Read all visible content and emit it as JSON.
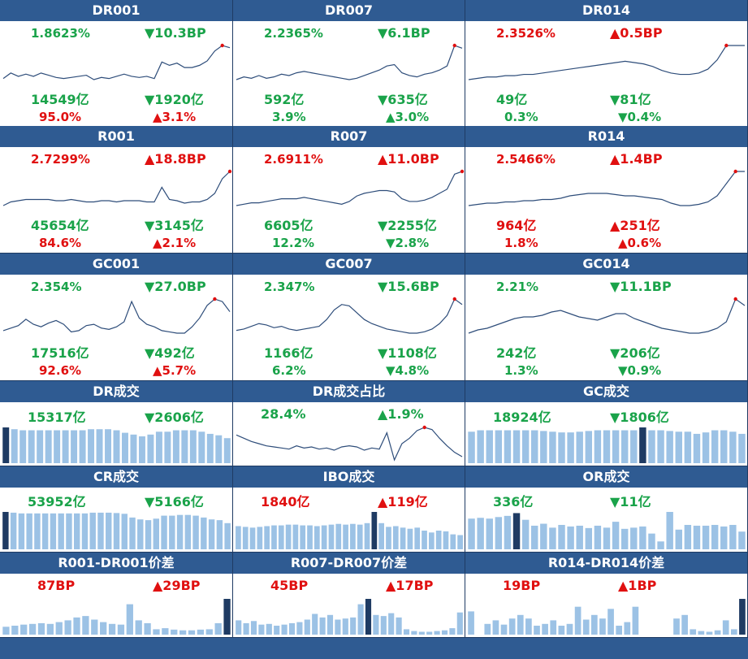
{
  "colors": {
    "header": "#2f5b92",
    "up": "#e01010",
    "down": "#1aa34a",
    "line": "#2e4d7a",
    "bar": "#9cc2e5",
    "bar_hi": "#1f3b63"
  },
  "rate_cells": [
    {
      "title": "DR001",
      "rate": "1.8623%",
      "rate_color": "g",
      "chg": "▼10.3BP",
      "chg_color": "g",
      "vol": "14549亿",
      "vol_color": "g",
      "vchg": "▼1920亿",
      "vchg_color": "g",
      "pct": "95.0%",
      "pct_color": "r",
      "pchg": "▲3.1%",
      "pchg_color": "r",
      "series": [
        40,
        45,
        42,
        44,
        42,
        45,
        43,
        41,
        40,
        41,
        42,
        43,
        39,
        41,
        40,
        42,
        44,
        42,
        41,
        42,
        40,
        55,
        52,
        54,
        50,
        50,
        52,
        56,
        65,
        70,
        68
      ]
    },
    {
      "title": "DR007",
      "rate": "2.2365%",
      "rate_color": "g",
      "chg": "▼6.1BP",
      "chg_color": "g",
      "vol": "592亿",
      "vol_color": "g",
      "vchg": "▼635亿",
      "vchg_color": "g",
      "pct": "3.9%",
      "pchg": "▲3.0%",
      "pct_color": "g",
      "pchg_color": "g",
      "series": [
        45,
        47,
        46,
        48,
        46,
        47,
        49,
        48,
        50,
        51,
        50,
        49,
        48,
        47,
        46,
        45,
        46,
        48,
        50,
        52,
        55,
        56,
        50,
        48,
        47,
        49,
        50,
        52,
        55,
        70,
        68
      ]
    },
    {
      "title": "DR014",
      "rate": "2.3526%",
      "rate_color": "r",
      "chg": "▲0.5BP",
      "chg_color": "r",
      "vol": "49亿",
      "vol_color": "g",
      "vchg": "▼81亿",
      "vchg_color": "g",
      "pct": "0.3%",
      "pct_color": "g",
      "pchg": "▼0.4%",
      "pchg_color": "g",
      "series": [
        40,
        41,
        42,
        42,
        43,
        43,
        44,
        44,
        45,
        46,
        47,
        48,
        49,
        50,
        51,
        52,
        53,
        54,
        53,
        52,
        50,
        47,
        45,
        44,
        44,
        45,
        48,
        55,
        66,
        66,
        66
      ]
    },
    {
      "title": "R001",
      "rate": "2.7299%",
      "rate_color": "r",
      "chg": "▲18.8BP",
      "chg_color": "r",
      "vol": "45654亿",
      "vol_color": "g",
      "vchg": "▼3145亿",
      "vchg_color": "g",
      "pct": "84.6%",
      "pct_color": "r",
      "pchg": "▲2.1%",
      "pchg_color": "r",
      "series": [
        40,
        43,
        44,
        45,
        45,
        45,
        45,
        44,
        44,
        45,
        44,
        43,
        43,
        44,
        44,
        43,
        44,
        44,
        44,
        43,
        43,
        55,
        45,
        44,
        42,
        43,
        43,
        45,
        50,
        62,
        68
      ]
    },
    {
      "title": "R007",
      "rate": "2.6911%",
      "rate_color": "r",
      "chg": "▲11.0BP",
      "chg_color": "r",
      "vol": "6605亿",
      "vol_color": "g",
      "vchg": "▼2255亿",
      "vchg_color": "g",
      "pct": "12.2%",
      "pct_color": "g",
      "pchg": "▼2.8%",
      "pchg_color": "g",
      "series": [
        45,
        46,
        47,
        47,
        48,
        49,
        50,
        50,
        50,
        51,
        50,
        49,
        48,
        47,
        46,
        48,
        52,
        54,
        55,
        56,
        56,
        55,
        50,
        48,
        48,
        49,
        51,
        54,
        57,
        68,
        70
      ]
    },
    {
      "title": "R014",
      "rate": "2.5466%",
      "rate_color": "r",
      "chg": "▲1.4BP",
      "chg_color": "r",
      "vol": "964亿",
      "vol_color": "r",
      "vchg": "▲251亿",
      "vchg_color": "r",
      "pct": "1.8%",
      "pct_color": "r",
      "pchg": "▲0.6%",
      "pchg_color": "r",
      "series": [
        42,
        43,
        44,
        44,
        45,
        45,
        46,
        46,
        47,
        47,
        48,
        50,
        51,
        52,
        52,
        52,
        51,
        50,
        50,
        49,
        48,
        47,
        44,
        42,
        42,
        43,
        45,
        50,
        60,
        70,
        70
      ]
    },
    {
      "title": "GC001",
      "rate": "2.354%",
      "rate_color": "g",
      "chg": "▼27.0BP",
      "chg_color": "g",
      "vol": "17516亿",
      "vol_color": "g",
      "vchg": "▼492亿",
      "vchg_color": "g",
      "pct": "92.6%",
      "pct_color": "r",
      "pchg": "▲5.7%",
      "pchg_color": "r",
      "series": [
        45,
        47,
        49,
        54,
        50,
        48,
        51,
        53,
        50,
        44,
        45,
        49,
        50,
        47,
        46,
        48,
        52,
        68,
        55,
        50,
        48,
        45,
        44,
        43,
        43,
        48,
        55,
        65,
        70,
        68,
        60
      ]
    },
    {
      "title": "GC007",
      "rate": "2.347%",
      "rate_color": "g",
      "chg": "▼15.6BP",
      "chg_color": "g",
      "vol": "1166亿",
      "vol_color": "g",
      "vchg": "▼1108亿",
      "vchg_color": "g",
      "pct": "6.2%",
      "pct_color": "g",
      "pchg": "▼4.8%",
      "pchg_color": "g",
      "series": [
        47,
        48,
        50,
        52,
        51,
        49,
        50,
        48,
        47,
        48,
        49,
        50,
        55,
        62,
        66,
        65,
        60,
        55,
        52,
        50,
        48,
        47,
        46,
        45,
        45,
        46,
        48,
        52,
        58,
        70,
        66
      ]
    },
    {
      "title": "GC014",
      "rate": "2.21%",
      "rate_color": "g",
      "chg": "▼11.1BP",
      "chg_color": "g",
      "vol": "242亿",
      "vol_color": "g",
      "vchg": "▼206亿",
      "vchg_color": "g",
      "pct": "1.3%",
      "pct_color": "g",
      "pchg": "▼0.9%",
      "pchg_color": "g",
      "series": [
        45,
        47,
        48,
        50,
        52,
        54,
        55,
        55,
        56,
        58,
        59,
        57,
        55,
        54,
        53,
        55,
        57,
        57,
        54,
        52,
        50,
        48,
        47,
        46,
        45,
        45,
        46,
        48,
        52,
        66,
        62
      ]
    }
  ],
  "row4": [
    {
      "title": "DR成交",
      "kind": "bar",
      "v1": "15317亿",
      "v1_color": "g",
      "v2": "▼2606亿",
      "v2_color": "g",
      "series": [
        100,
        95,
        92,
        92,
        92,
        92,
        92,
        92,
        92,
        92,
        95,
        95,
        95,
        92,
        85,
        80,
        75,
        80,
        88,
        88,
        92,
        92,
        92,
        88,
        82,
        78,
        70
      ],
      "hi": 0
    },
    {
      "title": "DR成交占比",
      "kind": "line",
      "v1": "28.4%",
      "v1_color": "g",
      "v2": "▲1.9%",
      "v2_color": "g",
      "series": [
        38,
        35,
        32,
        30,
        28,
        27,
        26,
        25,
        28,
        26,
        27,
        25,
        26,
        24,
        27,
        28,
        27,
        24,
        26,
        25,
        40,
        15,
        30,
        35,
        42,
        45,
        43,
        35,
        28,
        22,
        18
      ]
    },
    {
      "title": "GC成交",
      "kind": "bar",
      "v1": "18924亿",
      "v1_color": "g",
      "v2": "▼1806亿",
      "v2_color": "g",
      "series": [
        88,
        92,
        92,
        92,
        92,
        92,
        92,
        92,
        90,
        88,
        86,
        86,
        88,
        90,
        92,
        92,
        92,
        92,
        92,
        100,
        92,
        92,
        90,
        88,
        88,
        82,
        86,
        92,
        92,
        88,
        82
      ],
      "hi": 19
    }
  ],
  "row5": [
    {
      "title": "CR成交",
      "v1": "53952亿",
      "v1_color": "g",
      "v2": "▼5166亿",
      "v2_color": "g",
      "series": [
        100,
        98,
        96,
        96,
        96,
        96,
        96,
        96,
        96,
        96,
        96,
        98,
        98,
        98,
        97,
        95,
        85,
        80,
        78,
        82,
        90,
        90,
        92,
        92,
        90,
        85,
        80,
        78,
        70
      ],
      "hi": 0
    },
    {
      "title": "IBO成交",
      "v1": "1840亿",
      "v1_color": "r",
      "v2": "▲119亿",
      "v2_color": "r",
      "series": [
        62,
        60,
        58,
        60,
        62,
        64,
        64,
        66,
        66,
        64,
        64,
        62,
        64,
        66,
        68,
        66,
        68,
        66,
        70,
        100,
        70,
        60,
        62,
        58,
        55,
        58,
        50,
        45,
        50,
        48,
        40,
        38
      ],
      "hi": 19
    },
    {
      "title": "OR成交",
      "v1": "336亿",
      "v1_color": "g",
      "v2": "▼11亿",
      "v2_color": "g",
      "series": [
        78,
        80,
        78,
        82,
        85,
        92,
        75,
        60,
        65,
        55,
        62,
        58,
        60,
        54,
        60,
        55,
        70,
        52,
        55,
        58,
        40,
        20,
        95,
        50,
        62,
        60,
        60,
        62,
        58,
        62,
        45
      ],
      "hi": 5
    }
  ],
  "row6": [
    {
      "title": "R001-DR001价差",
      "v1": "87BP",
      "v1_color": "r",
      "v2": "▲29BP",
      "v2_color": "r",
      "series": [
        22,
        25,
        28,
        30,
        32,
        30,
        35,
        40,
        48,
        52,
        42,
        35,
        30,
        28,
        85,
        40,
        32,
        15,
        18,
        14,
        12,
        12,
        14,
        15,
        32,
        100
      ],
      "hi": 25
    },
    {
      "title": "R007-DR007价差",
      "v1": "45BP",
      "v1_color": "r",
      "v2": "▲17BP",
      "v2_color": "r",
      "series": [
        40,
        32,
        38,
        28,
        30,
        25,
        28,
        32,
        35,
        42,
        58,
        48,
        55,
        42,
        45,
        48,
        85,
        100,
        55,
        52,
        60,
        48,
        15,
        10,
        8,
        8,
        10,
        12,
        18,
        62
      ],
      "hi": 17
    },
    {
      "title": "R014-DR014价差",
      "v1": "19BP",
      "v1_color": "r",
      "v2": "▲1BP",
      "v2_color": "r",
      "series": [
        65,
        0,
        30,
        40,
        28,
        45,
        55,
        45,
        25,
        30,
        40,
        25,
        30,
        78,
        42,
        55,
        45,
        72,
        25,
        35,
        78,
        0,
        0,
        0,
        0,
        45,
        55,
        15,
        10,
        8,
        12,
        40,
        15,
        100
      ],
      "hi": 33
    }
  ]
}
